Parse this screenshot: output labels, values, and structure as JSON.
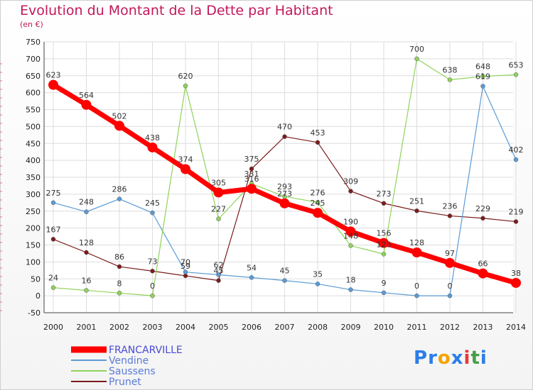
{
  "chart_data": {
    "type": "line",
    "title": "Evolution du Montant de la Dette par Habitant",
    "subtitle": "(en €)",
    "x": [
      "2000",
      "2001",
      "2002",
      "2003",
      "2004",
      "2005",
      "2006",
      "2007",
      "2008",
      "2009",
      "2010",
      "2011",
      "2012",
      "2013",
      "2014"
    ],
    "ylim": [
      -50,
      750
    ],
    "yticks": [
      -50,
      0,
      50,
      100,
      150,
      200,
      250,
      300,
      350,
      400,
      450,
      500,
      550,
      600,
      650,
      700,
      750
    ],
    "grid": true,
    "legend_position": "bottom-left",
    "series": [
      {
        "name": "FRANCARVILLE",
        "color": "#ff0000",
        "values": [
          623,
          564,
          502,
          438,
          374,
          305,
          316,
          273,
          245,
          190,
          156,
          128,
          97,
          66,
          38
        ]
      },
      {
        "name": "Vendine",
        "color": "#5b9bd5",
        "values": [
          275,
          248,
          286,
          245,
          70,
          62,
          54,
          45,
          35,
          18,
          9,
          0,
          0,
          619,
          402
        ]
      },
      {
        "name": "Saussens",
        "color": "#8fd35a",
        "values": [
          24,
          16,
          8,
          0,
          620,
          227,
          331,
          293,
          276,
          148,
          123,
          700,
          638,
          648,
          653
        ]
      },
      {
        "name": "Prunet",
        "color": "#7b1c1c",
        "values": [
          167,
          128,
          86,
          73,
          59,
          45,
          375,
          470,
          453,
          309,
          273,
          251,
          236,
          229,
          219
        ]
      }
    ]
  },
  "logo": {
    "text": "Proxiti",
    "letters": [
      {
        "ch": "P",
        "color": "#2b7de9"
      },
      {
        "ch": "r",
        "color": "#2b7de9"
      },
      {
        "ch": "o",
        "color": "#f4a300"
      },
      {
        "ch": "x",
        "color": "#2b7de9"
      },
      {
        "ch": "i",
        "color": "#e53935"
      },
      {
        "ch": "t",
        "color": "#43a047"
      },
      {
        "ch": "i",
        "color": "#2b7de9"
      }
    ]
  }
}
